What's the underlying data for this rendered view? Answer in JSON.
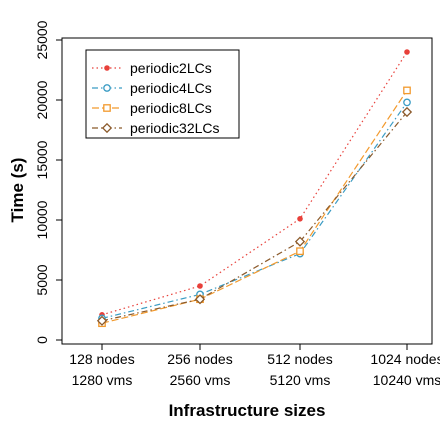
{
  "chart_data": {
    "type": "line",
    "title": "",
    "xlabel": "Infrastructure sizes",
    "ylabel": "Time (s)",
    "categories": [
      {
        "line1": "128 nodes",
        "line2": "1280 vms"
      },
      {
        "line1": "256 nodes",
        "line2": "2560 vms"
      },
      {
        "line1": "512 nodes",
        "line2": "5120 vms"
      },
      {
        "line1": "1024 nodes",
        "line2": "10240 vms"
      }
    ],
    "ylim": [
      0,
      25000
    ],
    "yticks": [
      "0",
      "5000",
      "10000",
      "15000",
      "20000",
      "25000"
    ],
    "grid": false,
    "legend_position": "top-left",
    "series": [
      {
        "name": "periodic2LCs",
        "values": [
          2100,
          4500,
          10100,
          24000
        ],
        "color": "#e8403a",
        "marker": "filled-circle",
        "dash": "dotted"
      },
      {
        "name": "periodic4LCs",
        "values": [
          1800,
          3800,
          7200,
          19800
        ],
        "color": "#3b9cc4",
        "marker": "open-circle",
        "dash": "dash-dot"
      },
      {
        "name": "periodic8LCs",
        "values": [
          1400,
          3400,
          7400,
          20800
        ],
        "color": "#f29a2e",
        "marker": "open-square",
        "dash": "long-dash"
      },
      {
        "name": "periodic32LCs",
        "values": [
          1600,
          3400,
          8200,
          19000
        ],
        "color": "#8b5a2b",
        "marker": "open-diamond",
        "dash": "dash-dot"
      }
    ]
  }
}
